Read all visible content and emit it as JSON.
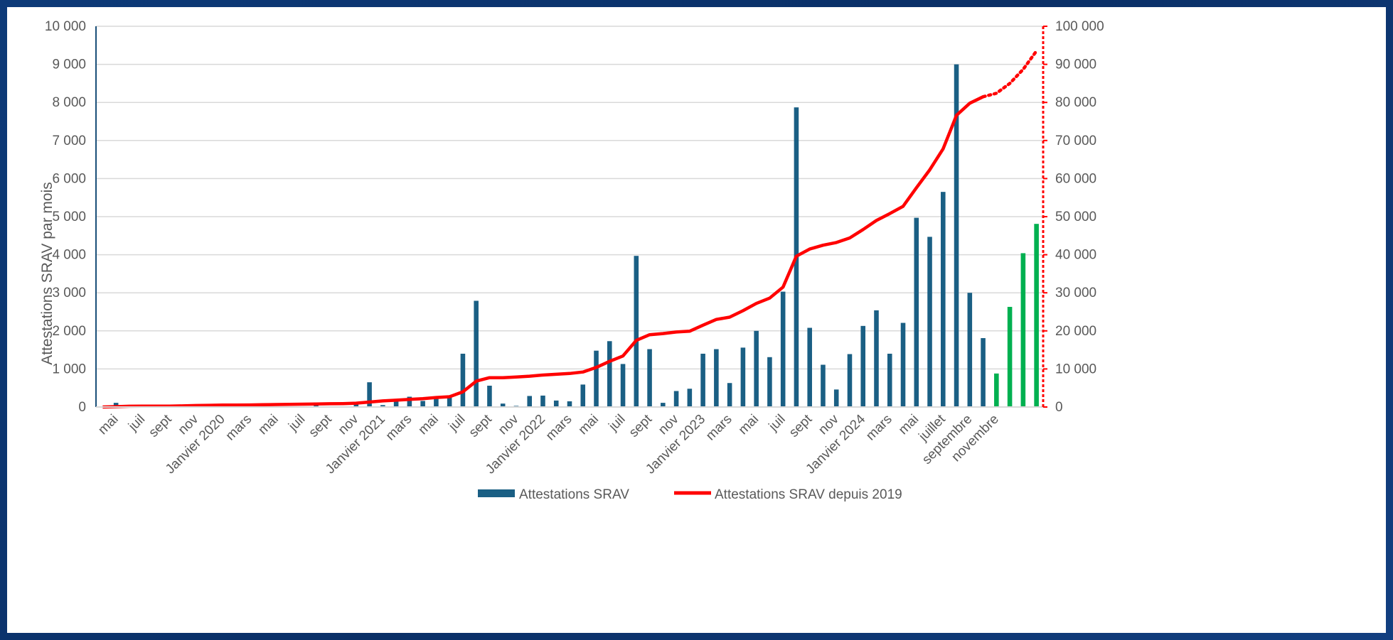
{
  "chart_data": {
    "type": "bar",
    "ylabel": "Attestations SRAV par mois",
    "y_ticks": [
      "0",
      "1 000",
      "2 000",
      "3 000",
      "4 000",
      "5 000",
      "6 000",
      "7 000",
      "8 000",
      "9 000",
      "10 000"
    ],
    "y2_ticks": [
      "0",
      "10 000",
      "20 000",
      "30 000",
      "40 000",
      "50 000",
      "60 000",
      "70 000",
      "80 000",
      "90 000",
      "100 000"
    ],
    "ylim": [
      0,
      10000
    ],
    "y2lim": [
      0,
      100000
    ],
    "grid": true,
    "legend_position": "bottom",
    "x_labels": [
      "mai",
      "juil",
      "sept",
      "nov",
      "Janvier 2020",
      "mars",
      "mai",
      "juil",
      "sept",
      "nov",
      "Janvier 2021",
      "mars",
      "mai",
      "juil",
      "sept",
      "nov",
      "Janvier 2022",
      "mars",
      "mai",
      "juil",
      "sept",
      "nov",
      "Janvier 2023",
      "mars",
      "mai",
      "juil",
      "sept",
      "nov",
      "Janvier 2024",
      "mars",
      "mai",
      "juillet",
      "septembre",
      "novembre"
    ],
    "bars": [
      10,
      110,
      0,
      0,
      0,
      0,
      0,
      0,
      0,
      0,
      0,
      0,
      0,
      0,
      0,
      0,
      120,
      0,
      0,
      80,
      650,
      50,
      170,
      270,
      160,
      240,
      260,
      1400,
      2790,
      560,
      90,
      30,
      290,
      300,
      170,
      150,
      590,
      1480,
      1730,
      1130,
      3970,
      1520,
      110,
      420,
      480,
      1400,
      1520,
      630,
      1560,
      2000,
      1310,
      3030,
      7870,
      2080,
      1110,
      460,
      1390,
      2130,
      2540,
      1400,
      2210,
      4970,
      4470,
      5650,
      9000,
      3000,
      1810
    ],
    "forecast_bars": [
      880,
      2630,
      4040,
      4810
    ],
    "cumulative": [
      0,
      100,
      200,
      250,
      250,
      250,
      300,
      400,
      450,
      500,
      500,
      550,
      600,
      650,
      700,
      750,
      800,
      850,
      900,
      1000,
      1300,
      1600,
      1800,
      2000,
      2200,
      2500,
      2700,
      4000,
      6800,
      7700,
      7700,
      7900,
      8100,
      8400,
      8600,
      8800,
      9200,
      10400,
      12000,
      13400,
      17500,
      19000,
      19300,
      19700,
      19900,
      21500,
      23000,
      23600,
      25300,
      27200,
      28600,
      31500,
      39600,
      41500,
      42500,
      43200,
      44400,
      46600,
      49000,
      50800,
      52700,
      57600,
      62300,
      67800,
      76600,
      79800,
      81500
    ],
    "cumulative_forecast": [
      81500,
      82400,
      85000,
      88700,
      93500
    ],
    "series": [
      {
        "name": "Attestations SRAV",
        "color": "#1a5f84"
      },
      {
        "name": "Attestations SRAV depuis 2019",
        "color": "#ff0000"
      }
    ],
    "forecast_bar_color": "#00b050",
    "axis2_color": "#ff0000"
  }
}
